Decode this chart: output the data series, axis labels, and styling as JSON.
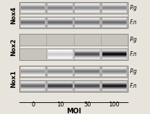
{
  "title": "MOI",
  "col_labels": [
    "0",
    "10",
    "50",
    "100"
  ],
  "row_groups": [
    "Nox1",
    "Nox2",
    "Nox4"
  ],
  "band_labels": [
    "F.n",
    "P.g"
  ],
  "figure_bg": "#e8e4dc",
  "bands": {
    "Nox1": {
      "F.n": {
        "intensities": [
          0.6,
          0.78,
          0.72,
          0.92
        ],
        "bg": "#b8b4ac"
      },
      "P.g": {
        "intensities": [
          0.42,
          0.48,
          0.55,
          0.5
        ],
        "bg": "#b8b4ac"
      }
    },
    "Nox2": {
      "F.n": {
        "intensities": [
          0.03,
          0.2,
          0.7,
          0.98
        ],
        "bg": "#c8c4bc"
      },
      "P.g": {
        "intensities": [
          0.03,
          0.03,
          0.03,
          0.03
        ],
        "bg": "#c8c4bc"
      }
    },
    "Nox4": {
      "F.n": {
        "intensities": [
          0.58,
          0.6,
          0.55,
          0.58
        ],
        "bg": "#b8b4ac"
      },
      "P.g": {
        "intensities": [
          0.48,
          0.5,
          0.45,
          0.48
        ],
        "bg": "#b8b4ac"
      }
    }
  }
}
